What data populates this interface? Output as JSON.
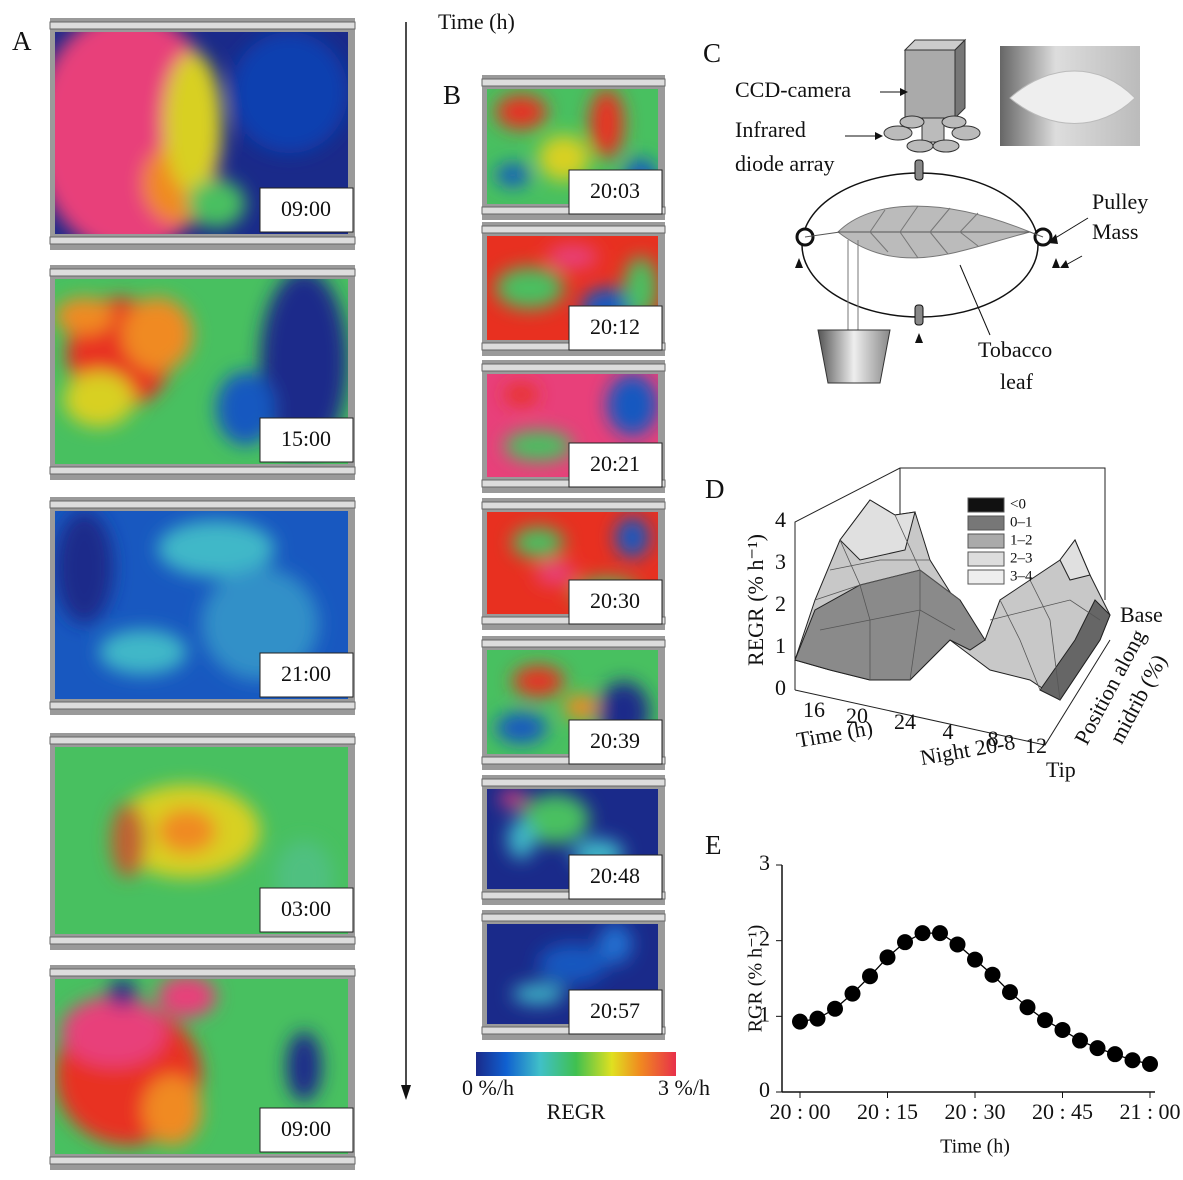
{
  "panels": {
    "A": {
      "label": "A",
      "times": [
        "09:00",
        "15:00",
        "21:00",
        "03:00",
        "09:00"
      ]
    },
    "time_axis": "Time (h)",
    "B": {
      "label": "B",
      "times": [
        "20:03",
        "20:12",
        "20:21",
        "20:30",
        "20:39",
        "20:48",
        "20:57"
      ],
      "colorbar": {
        "min_label": "0 %/h",
        "max_label": "3 %/h",
        "title": "REGR"
      }
    },
    "C": {
      "label": "C",
      "camera": "CCD-camera",
      "diodes": [
        "Infrared",
        "diode array"
      ],
      "pulley": "Pulley",
      "mass": "Mass",
      "leaf": [
        "Tobacco",
        "leaf"
      ]
    },
    "D": {
      "label": "D",
      "ylabel": "REGR (% h⁻¹)",
      "yticks": [
        0,
        1,
        2,
        3,
        4
      ],
      "time_ticks": [
        16,
        20,
        24,
        4,
        8,
        12
      ],
      "time_label": "Time (h)",
      "night_label": "Night 20-8",
      "base": "Base",
      "tip": "Tip",
      "position_label": [
        "Position along",
        "midrib (%)"
      ],
      "legend": [
        "<0",
        "0–1",
        "1–2",
        "2–3",
        "3–4"
      ]
    }
  },
  "chart_data": {
    "type": "line",
    "label": "E",
    "xlabel": "Time (h)",
    "ylabel": "RGR (% h⁻¹)",
    "x": [
      0,
      3,
      6,
      9,
      12,
      15,
      18,
      21,
      24,
      27,
      30,
      33,
      36,
      39,
      42,
      45,
      48,
      51,
      54,
      57,
      60
    ],
    "values": [
      0.93,
      0.97,
      1.1,
      1.3,
      1.53,
      1.78,
      1.98,
      2.1,
      2.1,
      1.95,
      1.75,
      1.55,
      1.32,
      1.12,
      0.95,
      0.82,
      0.68,
      0.58,
      0.5,
      0.42,
      0.37
    ],
    "color": "#000000",
    "xlim": [
      0,
      60
    ],
    "xticks": [
      {
        "value": 0,
        "label": "20 : 00"
      },
      {
        "value": 15,
        "label": "20 : 15"
      },
      {
        "value": 30,
        "label": "20 : 30"
      },
      {
        "value": 45,
        "label": "20 : 45"
      },
      {
        "value": 60,
        "label": "21 : 00"
      }
    ],
    "ylim": [
      0,
      3
    ],
    "yticks": [
      0,
      1,
      2,
      3
    ]
  }
}
